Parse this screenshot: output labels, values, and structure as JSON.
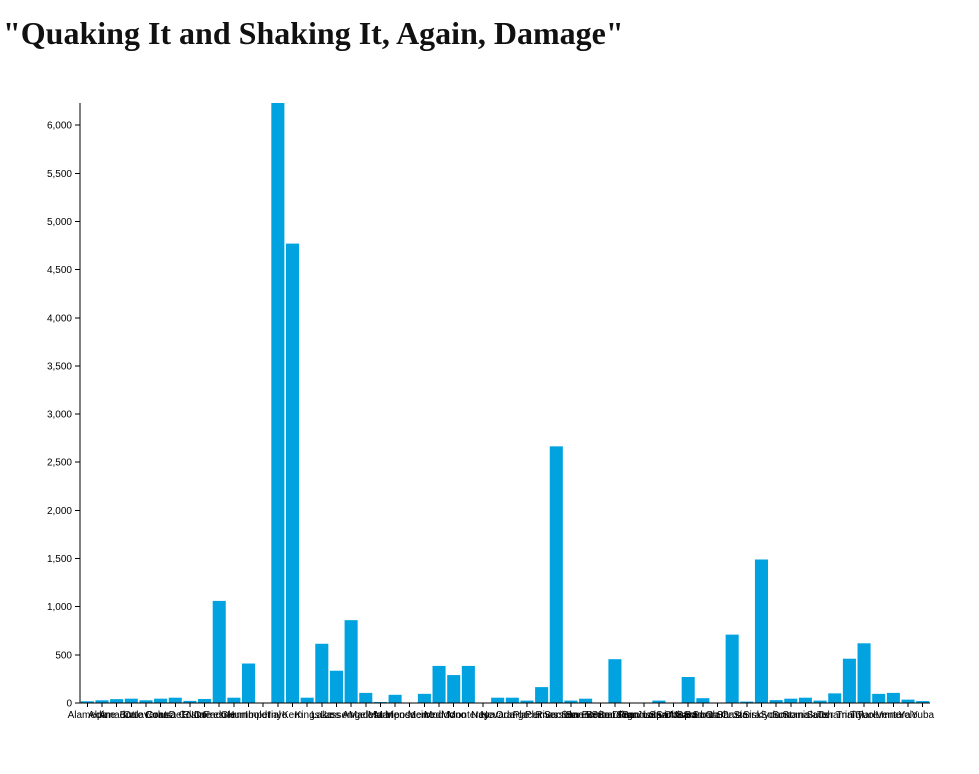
{
  "chart_data": {
    "type": "bar",
    "title": "\"Quaking It and Shaking It, Again, Damage\"",
    "xlabel": "",
    "ylabel": "",
    "ylim": [
      0,
      6230
    ],
    "yticks": [
      0,
      500,
      1000,
      1500,
      2000,
      2500,
      3000,
      3500,
      4000,
      4500,
      5000,
      5500,
      6000
    ],
    "ytick_labels": [
      "0",
      "500",
      "1,000",
      "1,500",
      "2,000",
      "2,500",
      "3,000",
      "3,500",
      "4,000",
      "4,500",
      "5,000",
      "5,500",
      "6,000"
    ],
    "grid": false,
    "legend": "none",
    "bar_color": "#00a3e0",
    "categories": [
      "Alameda",
      "Alpine",
      "Amador",
      "Butte",
      "Calaveras",
      "Colusa",
      "Contra Costa",
      "Del Norte",
      "El Dorado",
      "Fresno",
      "Glenn",
      "Humboldt",
      "Imperial",
      "Inyo",
      "Kern",
      "Kings",
      "Lake",
      "Lassen",
      "Los Angeles",
      "Madera",
      "Marin",
      "Mariposa",
      "Mendocino",
      "Merced",
      "Modoc",
      "Mono",
      "Monterey",
      "Napa",
      "Nevada",
      "Orange",
      "Placer",
      "Plumas",
      "Riverside",
      "Sacramento",
      "San Benito",
      "San Bernardino",
      "San Diego",
      "San Francisco",
      "San Joaquin",
      "San Luis Obispo",
      "San Mateo",
      "Santa Barbara",
      "Santa Clara",
      "Santa Cruz",
      "Shasta",
      "Sierra",
      "Siskiyou",
      "Solano",
      "Sonoma",
      "Stanislaus",
      "Sutter",
      "Tehama",
      "Trinity",
      "Tulare",
      "Tuolumne",
      "Ventura",
      "Yolo",
      "Yuba"
    ],
    "values": [
      18,
      28,
      40,
      45,
      28,
      45,
      55,
      22,
      42,
      1060,
      55,
      410,
      0,
      6230,
      4770,
      55,
      615,
      335,
      860,
      105,
      10,
      85,
      0,
      95,
      385,
      290,
      385,
      5,
      55,
      55,
      25,
      165,
      2665,
      25,
      45,
      5,
      455,
      5,
      5,
      25,
      5,
      270,
      50,
      5,
      710,
      15,
      1490,
      30,
      45,
      55,
      25,
      100,
      460,
      620,
      95,
      105,
      35,
      20
    ]
  }
}
